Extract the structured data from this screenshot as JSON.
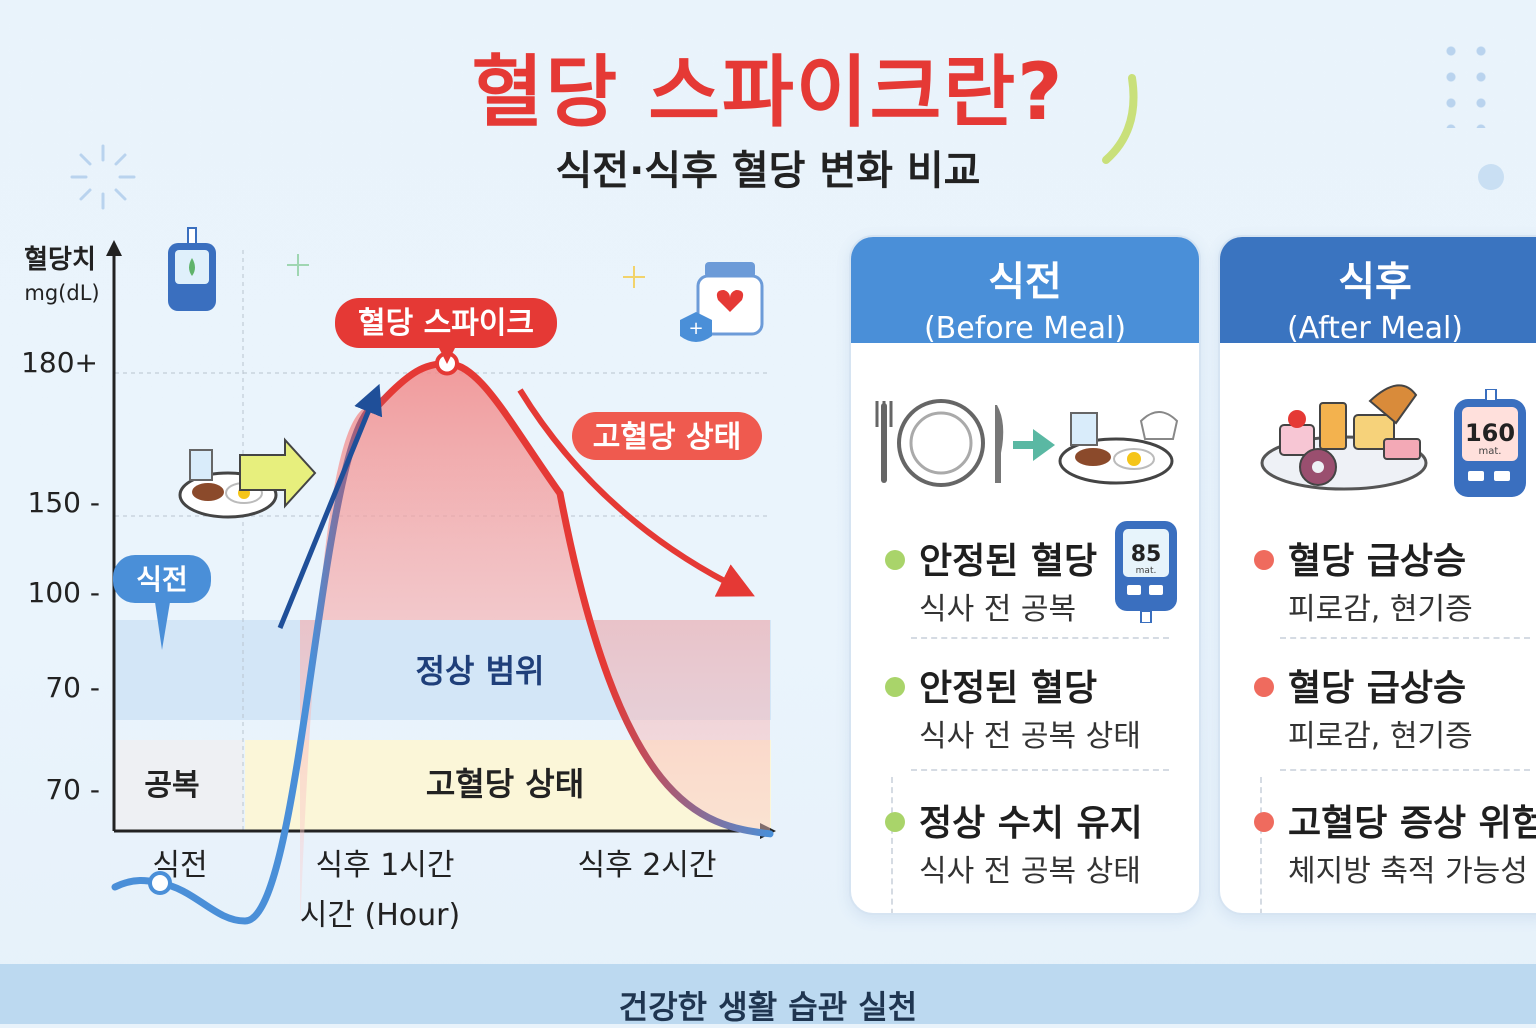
{
  "header": {
    "title": "혈당 스파이크란?",
    "subtitle": "식전·식후 혈당 변화 비교"
  },
  "chart_data": {
    "type": "line",
    "ylabel": "혈당치",
    "yunit": "mg(dL)",
    "ytick_labels": [
      "180+",
      "150 -",
      "100 -",
      "70 -",
      "70 -"
    ],
    "xlabel": "시간 (Hour)",
    "categories": [
      "식전",
      "식후 1시간",
      "식후 2시간"
    ],
    "series": [
      {
        "values": [
          73,
          182,
          85
        ]
      }
    ],
    "regions": {
      "normal": "정상 범위",
      "fasting": "공복",
      "high": "고혈당 상태"
    },
    "annotations": {
      "before": "식전",
      "spike": "혈당 스파이크",
      "high_state": "고혈당 상태"
    },
    "grid": "dashed reference lines at 180 and 150",
    "colors": {
      "line_low": "#4a8fd8",
      "line_high": "#e53935",
      "arrow_up": "#1f4f99",
      "normal_band": "#d3e6f7",
      "high_band": "#fbf6d8"
    }
  },
  "panels": [
    {
      "title": "식전",
      "subtitle": "(Before Meal)",
      "head_color": "#4a8fd8",
      "meter_value": "85",
      "meter_unit": "mat.",
      "items": [
        {
          "main": "안정된 혈당",
          "sub": "식사 전 공복",
          "dot_color": "#a9d46a"
        },
        {
          "main": "안정된 혈당",
          "sub": "식사 전 공복 상태",
          "dot_color": "#a9d46a"
        },
        {
          "main": "정상 수치 유지",
          "sub": "식사 전 공복 상태",
          "dot_color": "#a9d46a"
        }
      ]
    },
    {
      "title": "식후",
      "subtitle": "(After Meal)",
      "head_color": "#3a74c0",
      "meter_value": "160",
      "meter_unit": "mat.",
      "items": [
        {
          "main": "혈당 급상승",
          "sub": "피로감, 현기증",
          "dot_color": "#ef6b5e"
        },
        {
          "main": "혈당 급상승",
          "sub": "피로감, 현기증",
          "dot_color": "#ef6b5e"
        },
        {
          "main": "고혈당 증상 위험",
          "sub": "체지방 축적 가능성",
          "dot_color": "#ef6b5e"
        }
      ]
    }
  ],
  "footer": {
    "text": "건강한 생활 습관 실천"
  }
}
